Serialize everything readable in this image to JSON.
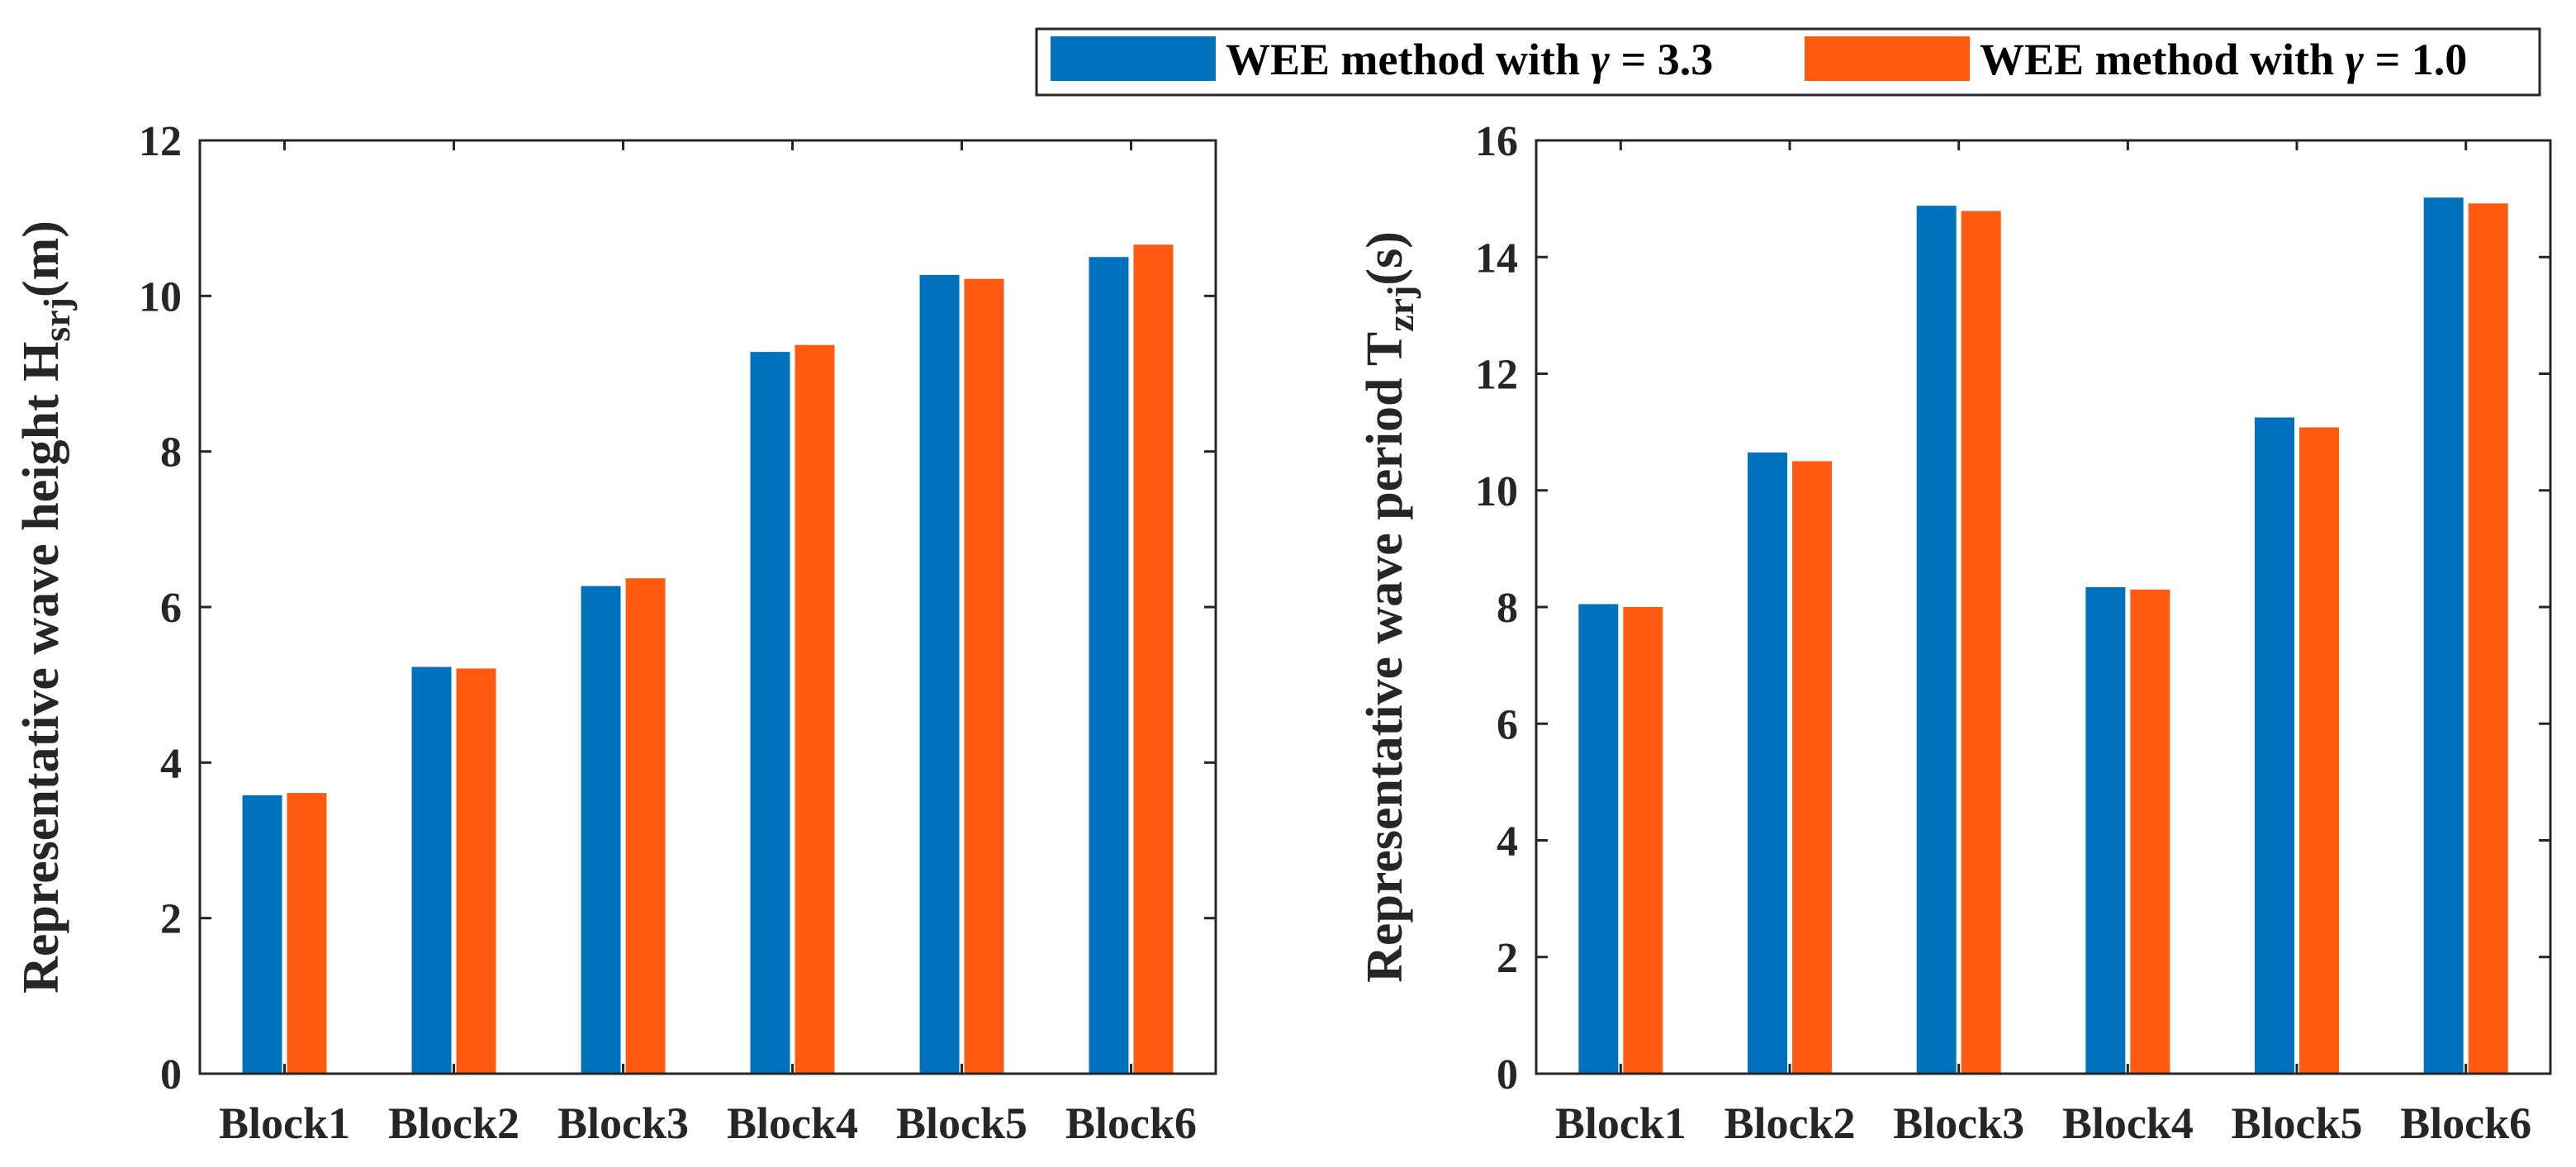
{
  "legend": {
    "items": [
      {
        "prefix": "WEE method with ",
        "symbol": "γ",
        "suffix": " = 3.3",
        "color": "#0072BD"
      },
      {
        "prefix": "WEE method with ",
        "symbol": "γ",
        "suffix": " = 1.0",
        "color": "#FF5A0F"
      }
    ]
  },
  "chart_data": [
    {
      "type": "bar",
      "title": "",
      "xlabel": "",
      "ylabel": {
        "main": "Representative wave height H",
        "sub": "srj",
        "unit": "(m)"
      },
      "categories": [
        "Block1",
        "Block2",
        "Block3",
        "Block4",
        "Block5",
        "Block6"
      ],
      "series": [
        {
          "name": "WEE method with γ = 3.3",
          "color": "#0072BD",
          "values": [
            3.58,
            5.23,
            6.27,
            9.28,
            10.27,
            10.5
          ]
        },
        {
          "name": "WEE method with γ = 1.0",
          "color": "#FF5A0F",
          "values": [
            3.61,
            5.21,
            6.37,
            9.37,
            10.22,
            10.66
          ]
        }
      ],
      "ylim": [
        0,
        12
      ],
      "yticks": [
        0,
        2,
        4,
        6,
        8,
        10,
        12
      ],
      "ytick_labels": [
        "0",
        "2",
        "4",
        "6",
        "8",
        "10",
        "12"
      ],
      "grid": false
    },
    {
      "type": "bar",
      "title": "",
      "xlabel": "",
      "ylabel": {
        "main": "Representative wave period T",
        "sub": "zrj",
        "unit": "(s)"
      },
      "categories": [
        "Block1",
        "Block2",
        "Block3",
        "Block4",
        "Block5",
        "Block6"
      ],
      "series": [
        {
          "name": "WEE method with γ = 3.3",
          "color": "#0072BD",
          "values": [
            8.05,
            10.65,
            14.88,
            8.34,
            11.25,
            15.02
          ]
        },
        {
          "name": "WEE method with γ = 1.0",
          "color": "#FF5A0F",
          "values": [
            8.0,
            10.5,
            14.79,
            8.3,
            11.08,
            14.92
          ]
        }
      ],
      "ylim": [
        0,
        16
      ],
      "yticks": [
        0,
        2,
        4,
        6,
        8,
        10,
        12,
        14,
        16
      ],
      "ytick_labels": [
        "0",
        "2",
        "4",
        "6",
        "8",
        "10",
        "12",
        "14",
        "16"
      ],
      "grid": false
    }
  ]
}
